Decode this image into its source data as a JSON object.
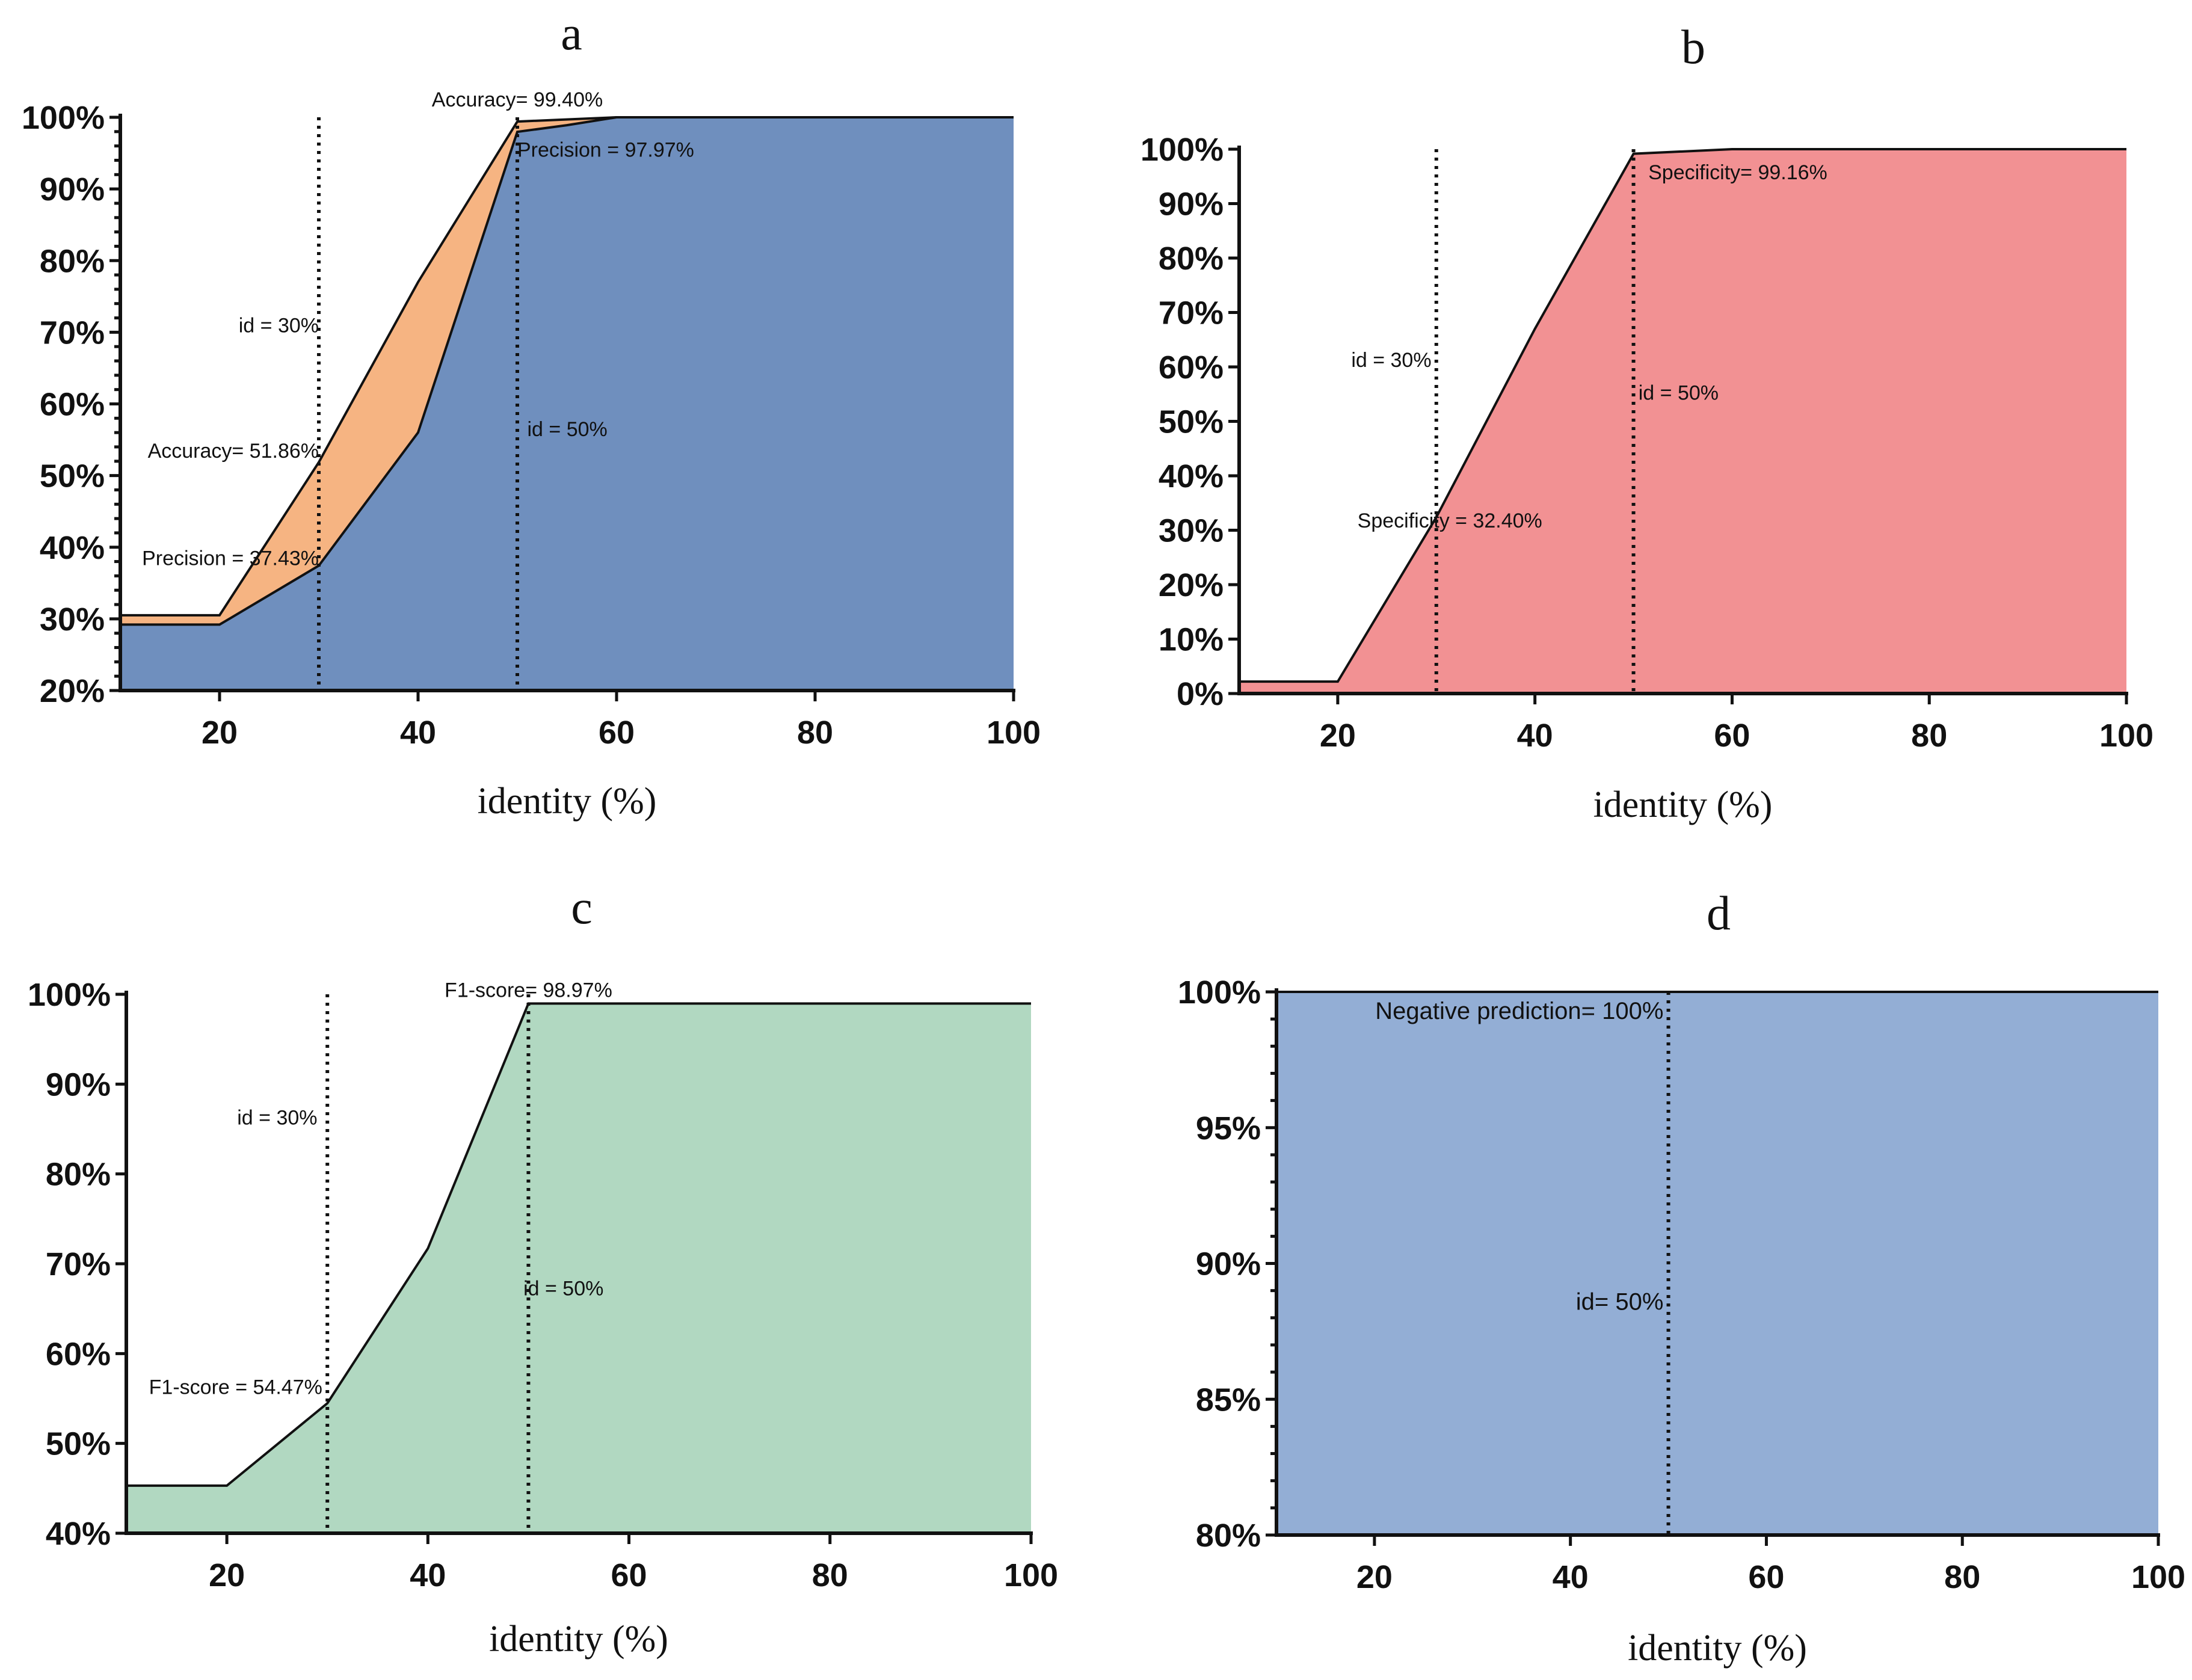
{
  "chart_data": [
    {
      "panel": "a",
      "type": "area",
      "xlabel": "identity (%)",
      "ylabel": "",
      "xlim": [
        10,
        100
      ],
      "ylim": [
        20,
        100
      ],
      "xticks": [
        20,
        40,
        60,
        80,
        100
      ],
      "yticks": [
        20,
        30,
        40,
        50,
        60,
        70,
        80,
        90,
        100
      ],
      "ytick_labels": [
        "20%",
        "30%",
        "40%",
        "50%",
        "60%",
        "70%",
        "80%",
        "90%",
        "100%"
      ],
      "colors": {
        "accuracy": "#f6b482",
        "precision": "#6f8fbe"
      },
      "series": [
        {
          "key": "accuracy",
          "x": [
            10,
            20,
            30,
            40,
            50,
            60,
            70,
            80,
            90,
            100
          ],
          "y": [
            30.5,
            30.5,
            51.86,
            77.0,
            99.4,
            100,
            100,
            100,
            100,
            100
          ]
        },
        {
          "key": "precision",
          "x": [
            10,
            20,
            30,
            40,
            50,
            55,
            60,
            70,
            80,
            90,
            100
          ],
          "y": [
            29.2,
            29.2,
            37.43,
            56.0,
            97.97,
            98.9,
            100,
            100,
            100,
            100,
            100
          ]
        }
      ],
      "vlines": [
        30,
        50
      ],
      "annotations": [
        {
          "text": "Accuracy= 99.40%",
          "x": 50,
          "y": 101.5,
          "anchor": "middle"
        },
        {
          "text": "Precision = 97.97%",
          "x": 50,
          "y": 94.5,
          "anchor": "start"
        },
        {
          "text": "id = 30%",
          "x": 30,
          "y": 70.0,
          "anchor": "end"
        },
        {
          "text": "Accuracy= 51.86%",
          "x": 30,
          "y": 52.5,
          "anchor": "end"
        },
        {
          "text": "id = 50%",
          "x": 51,
          "y": 55.5,
          "anchor": "start"
        },
        {
          "text": "Precision = 37.43%",
          "x": 30,
          "y": 37.5,
          "anchor": "end"
        }
      ]
    },
    {
      "panel": "b",
      "type": "area",
      "xlabel": "identity (%)",
      "ylabel": "",
      "xlim": [
        10,
        100
      ],
      "ylim": [
        0,
        100
      ],
      "xticks": [
        20,
        40,
        60,
        80,
        100
      ],
      "yticks": [
        0,
        10,
        20,
        30,
        40,
        50,
        60,
        70,
        80,
        90,
        100
      ],
      "ytick_labels": [
        "0%",
        "10%",
        "20%",
        "30%",
        "40%",
        "50%",
        "60%",
        "70%",
        "80%",
        "90%",
        "100%"
      ],
      "colors": {
        "specificity": "#f29193"
      },
      "series": [
        {
          "key": "specificity",
          "x": [
            10,
            20,
            30,
            40,
            50,
            60,
            70,
            80,
            90,
            100
          ],
          "y": [
            2.2,
            2.2,
            32.4,
            67.0,
            99.16,
            100,
            100,
            100,
            100,
            100
          ]
        }
      ],
      "vlines": [
        30,
        50
      ],
      "annotations": [
        {
          "text": "Specificity= 99.16%",
          "x": 51.5,
          "y": 94.5,
          "anchor": "start"
        },
        {
          "text": "id = 30%",
          "x": 29.5,
          "y": 60.0,
          "anchor": "end"
        },
        {
          "text": "id = 50%",
          "x": 50.5,
          "y": 54.0,
          "anchor": "start"
        },
        {
          "text": "Specificity = 32.40%",
          "x": 22,
          "y": 30.5,
          "anchor": "start"
        }
      ]
    },
    {
      "panel": "c",
      "type": "area",
      "xlabel": "identity (%)",
      "ylabel": "",
      "xlim": [
        10,
        100
      ],
      "ylim": [
        40,
        100
      ],
      "xticks": [
        20,
        40,
        60,
        80,
        100
      ],
      "yticks": [
        40,
        50,
        60,
        70,
        80,
        90,
        100
      ],
      "ytick_labels": [
        "40%",
        "50%",
        "60%",
        "70%",
        "80%",
        "90%",
        "100%"
      ],
      "colors": {
        "f1": "#b1d8c1"
      },
      "series": [
        {
          "key": "f1",
          "x": [
            10,
            20,
            30,
            40,
            50,
            60,
            70,
            80,
            90,
            100
          ],
          "y": [
            45.3,
            45.3,
            54.47,
            71.7,
            98.97,
            98.97,
            98.97,
            98.97,
            98.97,
            98.97
          ]
        }
      ],
      "vlines": [
        30,
        50
      ],
      "annotations": [
        {
          "text": "F1-score= 98.97%",
          "x": 50,
          "y": 99.7,
          "anchor": "middle"
        },
        {
          "text": "id = 30%",
          "x": 29,
          "y": 85.5,
          "anchor": "end"
        },
        {
          "text": "id = 50%",
          "x": 49.5,
          "y": 66.5,
          "anchor": "start"
        },
        {
          "text": "F1-score = 54.47%",
          "x": 29.5,
          "y": 55.5,
          "anchor": "end"
        }
      ]
    },
    {
      "panel": "d",
      "type": "area",
      "xlabel": "identity (%)",
      "ylabel": "",
      "xlim": [
        10,
        100
      ],
      "ylim": [
        80,
        100
      ],
      "xticks": [
        20,
        40,
        60,
        80,
        100
      ],
      "yticks": [
        80,
        85,
        90,
        95,
        100
      ],
      "ytick_labels": [
        "80%",
        "85%",
        "90%",
        "95%",
        "100%"
      ],
      "colors": {
        "npv": "#93aed5"
      },
      "series": [
        {
          "key": "npv",
          "x": [
            10,
            20,
            30,
            40,
            50,
            60,
            70,
            80,
            90,
            100
          ],
          "y": [
            100,
            100,
            100,
            100,
            100,
            100,
            100,
            100,
            100,
            100
          ]
        }
      ],
      "vlines": [
        50
      ],
      "annotations": [
        {
          "text": "Negative prediction= 100%",
          "x": 49.5,
          "y": 99.0,
          "anchor": "end"
        },
        {
          "text": "id= 50%",
          "x": 49.5,
          "y": 88.3,
          "anchor": "end"
        }
      ]
    }
  ]
}
